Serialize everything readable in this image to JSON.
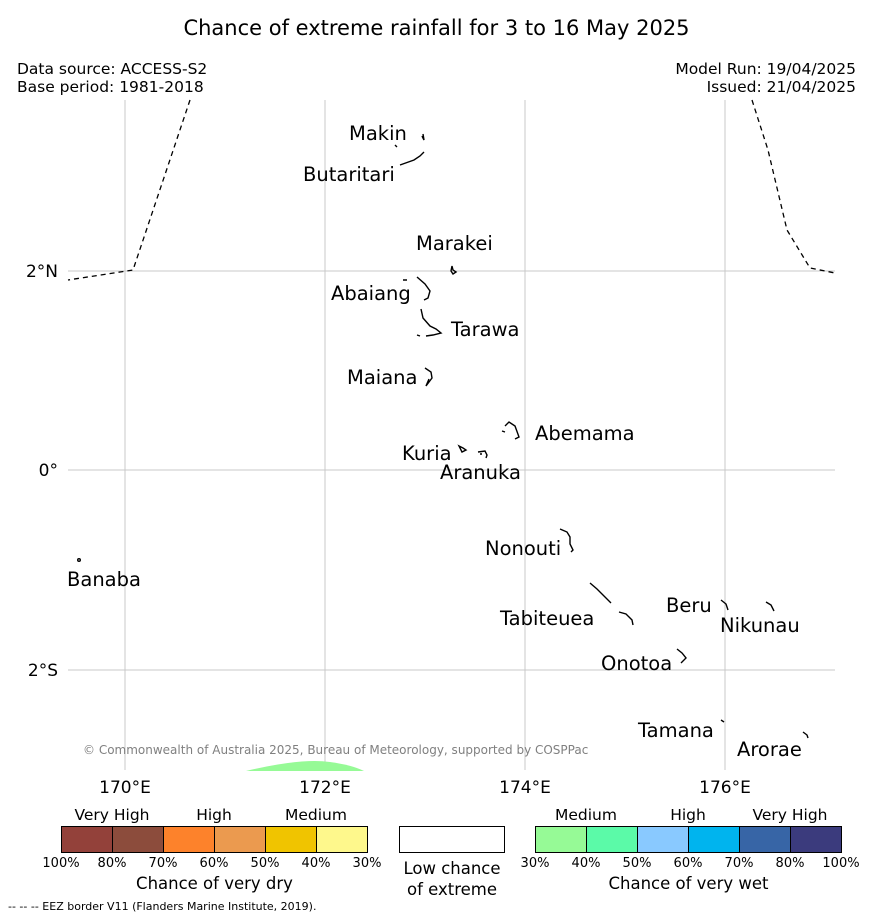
{
  "title": "Chance of extreme rainfall for 3 to 16 May 2025",
  "header": {
    "data_source": "Data source: ACCESS-S2",
    "base_period": "Base period: 1981-2018",
    "model_run": "Model Run: 19/04/2025",
    "issued": "Issued: 21/04/2025"
  },
  "map": {
    "lon_range": [
      169.35,
      177.1
    ],
    "lat_range": [
      -3.0,
      3.7
    ],
    "lon_ticks": [
      "170°E",
      "172°E",
      "174°E",
      "176°E"
    ],
    "lat_ticks": [
      "2°N",
      "0°",
      "2°S"
    ],
    "grid": true,
    "islands": [
      "Makin",
      "Butaritari",
      "Marakei",
      "Abaiang",
      "Tarawa",
      "Maiana",
      "Abemama",
      "Kuria",
      "Aranuka",
      "Nonouti",
      "Banaba",
      "Beru",
      "Nikunau",
      "Tabiteuea",
      "Onotoa",
      "Tamana",
      "Arorae"
    ],
    "shading": [
      {
        "category": "Medium",
        "color": "#96fa96",
        "location": "bottom edge near 172°E"
      }
    ],
    "copyright": "© Commonwealth of Australia 2025, Bureau of Meteorology, supported by COSPPac"
  },
  "legend": {
    "dry": {
      "categories": [
        "Very High",
        "High",
        "Medium"
      ],
      "colors": [
        "#93413a",
        "#8c4c3c",
        "#fd822b",
        "#eb9a4f",
        "#f0c400",
        "#fef88c"
      ],
      "ticks": [
        "100%",
        "80%",
        "70%",
        "60%",
        "50%",
        "40%",
        "30%"
      ],
      "title": "Chance of very dry"
    },
    "low": {
      "color": "#ffffff",
      "line1": "Low chance",
      "line2": "of extreme"
    },
    "wet": {
      "categories": [
        "Medium",
        "High",
        "Very High"
      ],
      "colors": [
        "#96fa96",
        "#5bfaa8",
        "#89c9ff",
        "#00b4ee",
        "#3765a6",
        "#3b3b7d"
      ],
      "ticks": [
        "30%",
        "40%",
        "50%",
        "60%",
        "70%",
        "80%",
        "100%"
      ],
      "title": "Chance of very wet"
    }
  },
  "footnote": "--  --  -- EEZ border V11 (Flanders Marine Institute, 2019)."
}
